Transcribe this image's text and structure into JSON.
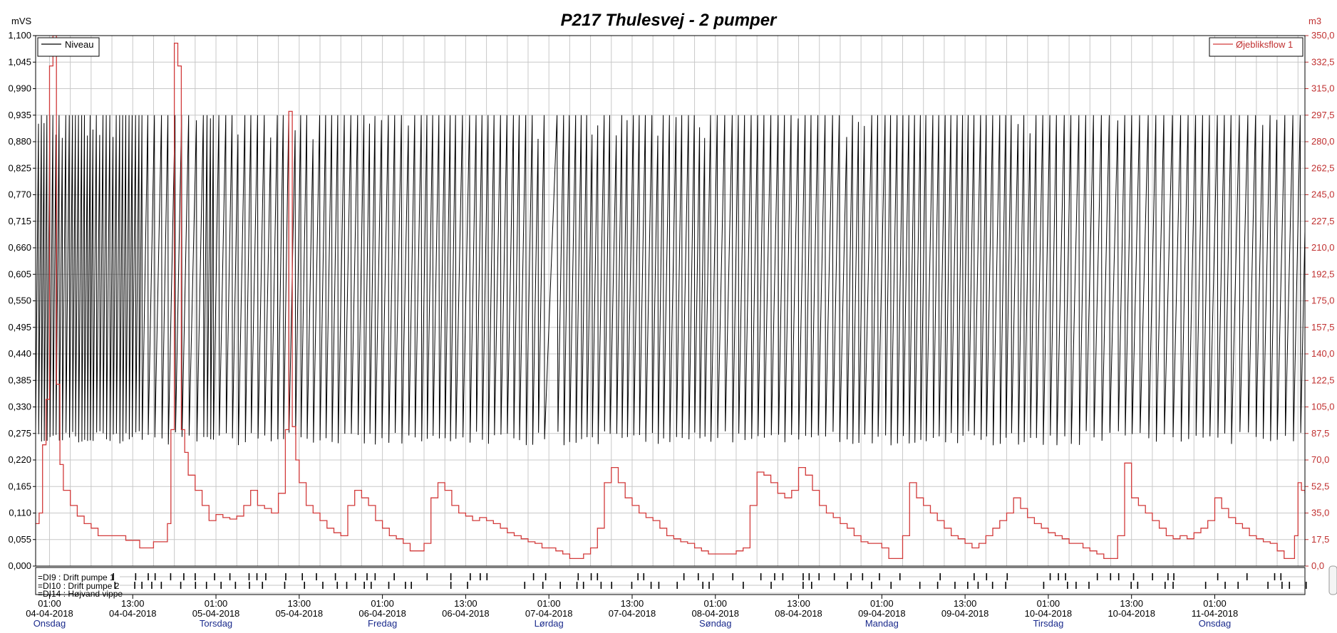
{
  "chart_data": {
    "type": "line",
    "title": "P217 Thulesvej - 2 pumper",
    "left_axis": {
      "unit": "mVS",
      "ylim": [
        0,
        1.1
      ],
      "ticks": [
        "0,000",
        "0,055",
        "0,110",
        "0,165",
        "0,220",
        "0,275",
        "0,330",
        "0,385",
        "0,440",
        "0,495",
        "0,550",
        "0,605",
        "0,660",
        "0,715",
        "0,770",
        "0,825",
        "0,880",
        "0,935",
        "0,990",
        "1,045",
        "1,100"
      ]
    },
    "right_axis": {
      "unit": "m3",
      "ylim": [
        0,
        350
      ],
      "ticks": [
        "0,0",
        "17,5",
        "35,0",
        "52,5",
        "70,0",
        "87,5",
        "105,0",
        "122,5",
        "140,0",
        "157,5",
        "175,0",
        "192,5",
        "210,0",
        "227,5",
        "245,0",
        "262,5",
        "280,0",
        "297,5",
        "315,0",
        "332,5",
        "350,0"
      ]
    },
    "x_axis": {
      "range_hours": [
        -1,
        182
      ],
      "ticks": [
        {
          "h": 1,
          "time": "01:00",
          "date": "04-04-2018",
          "day": "Onsdag"
        },
        {
          "h": 13,
          "time": "13:00",
          "date": "04-04-2018",
          "day": ""
        },
        {
          "h": 25,
          "time": "01:00",
          "date": "05-04-2018",
          "day": "Torsdag"
        },
        {
          "h": 37,
          "time": "13:00",
          "date": "05-04-2018",
          "day": ""
        },
        {
          "h": 49,
          "time": "01:00",
          "date": "06-04-2018",
          "day": "Fredag"
        },
        {
          "h": 61,
          "time": "13:00",
          "date": "06-04-2018",
          "day": ""
        },
        {
          "h": 73,
          "time": "01:00",
          "date": "07-04-2018",
          "day": "Lørdag"
        },
        {
          "h": 85,
          "time": "13:00",
          "date": "07-04-2018",
          "day": ""
        },
        {
          "h": 97,
          "time": "01:00",
          "date": "08-04-2018",
          "day": "Søndag"
        },
        {
          "h": 109,
          "time": "13:00",
          "date": "08-04-2018",
          "day": ""
        },
        {
          "h": 121,
          "time": "01:00",
          "date": "09-04-2018",
          "day": "Mandag"
        },
        {
          "h": 133,
          "time": "13:00",
          "date": "09-04-2018",
          "day": ""
        },
        {
          "h": 145,
          "time": "01:00",
          "date": "10-04-2018",
          "day": "Tirsdag"
        },
        {
          "h": 157,
          "time": "13:00",
          "date": "10-04-2018",
          "day": ""
        },
        {
          "h": 169,
          "time": "01:00",
          "date": "11-04-2018",
          "day": "Onsdag"
        }
      ]
    },
    "series": [
      {
        "name": "Niveau",
        "axis": "left",
        "color": "#000000",
        "pattern": "sawtooth cycles between ~0.28 and ~0.935 mVS",
        "approx_cycle_period_hours": [
          {
            "from": -1,
            "to": 14,
            "period": 0.45
          },
          {
            "from": 14,
            "to": 23,
            "period": 1.0
          },
          {
            "from": 23,
            "to": 24.5,
            "period": 0.45
          },
          {
            "from": 24.5,
            "to": 72,
            "period": 0.9
          },
          {
            "from": 72,
            "to": 74,
            "period": 2.2
          },
          {
            "from": 74,
            "to": 97,
            "period": 0.85
          },
          {
            "from": 97,
            "to": 121,
            "period": 0.95
          },
          {
            "from": 121,
            "to": 145,
            "period": 0.9
          },
          {
            "from": 145,
            "to": 182,
            "period": 1.1
          }
        ]
      },
      {
        "name": "Øjebliksflow 1",
        "axis": "right",
        "color": "#d23a3a",
        "points": [
          [
            -1,
            28
          ],
          [
            -0.5,
            35
          ],
          [
            0,
            80
          ],
          [
            0.5,
            110
          ],
          [
            1,
            330
          ],
          [
            1.5,
            350
          ],
          [
            2,
            120
          ],
          [
            2.5,
            67
          ],
          [
            3,
            50
          ],
          [
            4,
            40
          ],
          [
            5,
            33
          ],
          [
            6,
            28
          ],
          [
            7,
            25
          ],
          [
            8,
            20
          ],
          [
            11,
            20
          ],
          [
            12,
            17
          ],
          [
            13,
            17
          ],
          [
            14,
            12
          ],
          [
            16,
            16
          ],
          [
            17,
            16
          ],
          [
            18,
            28
          ],
          [
            18.5,
            90
          ],
          [
            19,
            345
          ],
          [
            19.5,
            330
          ],
          [
            20,
            90
          ],
          [
            20.5,
            75
          ],
          [
            21,
            60
          ],
          [
            22,
            50
          ],
          [
            23,
            40
          ],
          [
            24,
            30
          ],
          [
            25,
            34
          ],
          [
            26,
            32
          ],
          [
            27,
            31
          ],
          [
            28,
            33
          ],
          [
            29,
            40
          ],
          [
            30,
            50
          ],
          [
            31,
            40
          ],
          [
            32,
            38
          ],
          [
            33,
            35
          ],
          [
            34,
            48
          ],
          [
            35,
            90
          ],
          [
            35.5,
            300
          ],
          [
            36,
            92
          ],
          [
            36.5,
            70
          ],
          [
            37,
            55
          ],
          [
            38,
            40
          ],
          [
            39,
            35
          ],
          [
            40,
            30
          ],
          [
            41,
            25
          ],
          [
            42,
            22
          ],
          [
            43,
            20
          ],
          [
            44,
            40
          ],
          [
            45,
            50
          ],
          [
            46,
            45
          ],
          [
            47,
            40
          ],
          [
            48,
            30
          ],
          [
            49,
            25
          ],
          [
            50,
            20
          ],
          [
            51,
            18
          ],
          [
            52,
            15
          ],
          [
            53,
            10
          ],
          [
            54,
            10
          ],
          [
            55,
            15
          ],
          [
            56,
            45
          ],
          [
            57,
            55
          ],
          [
            58,
            50
          ],
          [
            59,
            40
          ],
          [
            60,
            35
          ],
          [
            61,
            33
          ],
          [
            62,
            30
          ],
          [
            63,
            32
          ],
          [
            64,
            30
          ],
          [
            65,
            28
          ],
          [
            66,
            25
          ],
          [
            67,
            22
          ],
          [
            68,
            20
          ],
          [
            69,
            18
          ],
          [
            70,
            16
          ],
          [
            71,
            15
          ],
          [
            72,
            12
          ],
          [
            73,
            12
          ],
          [
            74,
            10
          ],
          [
            75,
            8
          ],
          [
            76,
            5
          ],
          [
            77,
            5
          ],
          [
            78,
            8
          ],
          [
            79,
            12
          ],
          [
            80,
            25
          ],
          [
            81,
            55
          ],
          [
            82,
            65
          ],
          [
            83,
            55
          ],
          [
            84,
            45
          ],
          [
            85,
            40
          ],
          [
            86,
            35
          ],
          [
            87,
            32
          ],
          [
            88,
            30
          ],
          [
            89,
            25
          ],
          [
            90,
            20
          ],
          [
            91,
            18
          ],
          [
            92,
            16
          ],
          [
            93,
            15
          ],
          [
            94,
            12
          ],
          [
            95,
            10
          ],
          [
            96,
            8
          ],
          [
            97,
            8
          ],
          [
            98,
            8
          ],
          [
            99,
            8
          ],
          [
            100,
            10
          ],
          [
            101,
            12
          ],
          [
            102,
            40
          ],
          [
            103,
            62
          ],
          [
            104,
            60
          ],
          [
            105,
            55
          ],
          [
            106,
            48
          ],
          [
            107,
            45
          ],
          [
            108,
            50
          ],
          [
            109,
            65
          ],
          [
            110,
            60
          ],
          [
            111,
            50
          ],
          [
            112,
            40
          ],
          [
            113,
            35
          ],
          [
            114,
            32
          ],
          [
            115,
            28
          ],
          [
            116,
            25
          ],
          [
            117,
            20
          ],
          [
            118,
            16
          ],
          [
            119,
            15
          ],
          [
            120,
            15
          ],
          [
            121,
            12
          ],
          [
            122,
            5
          ],
          [
            123,
            5
          ],
          [
            124,
            20
          ],
          [
            125,
            55
          ],
          [
            126,
            45
          ],
          [
            127,
            40
          ],
          [
            128,
            35
          ],
          [
            129,
            30
          ],
          [
            130,
            25
          ],
          [
            131,
            20
          ],
          [
            132,
            18
          ],
          [
            133,
            15
          ],
          [
            134,
            12
          ],
          [
            135,
            15
          ],
          [
            136,
            20
          ],
          [
            137,
            25
          ],
          [
            138,
            30
          ],
          [
            139,
            35
          ],
          [
            140,
            45
          ],
          [
            141,
            38
          ],
          [
            142,
            32
          ],
          [
            143,
            28
          ],
          [
            144,
            25
          ],
          [
            145,
            22
          ],
          [
            146,
            20
          ],
          [
            147,
            18
          ],
          [
            148,
            15
          ],
          [
            149,
            15
          ],
          [
            150,
            12
          ],
          [
            151,
            10
          ],
          [
            152,
            8
          ],
          [
            153,
            5
          ],
          [
            154,
            5
          ],
          [
            155,
            20
          ],
          [
            156,
            68
          ],
          [
            157,
            45
          ],
          [
            158,
            40
          ],
          [
            159,
            35
          ],
          [
            160,
            30
          ],
          [
            161,
            25
          ],
          [
            162,
            20
          ],
          [
            163,
            18
          ],
          [
            164,
            20
          ],
          [
            165,
            18
          ],
          [
            166,
            22
          ],
          [
            167,
            25
          ],
          [
            168,
            30
          ],
          [
            169,
            45
          ],
          [
            170,
            38
          ],
          [
            171,
            32
          ],
          [
            172,
            28
          ],
          [
            173,
            25
          ],
          [
            174,
            20
          ],
          [
            175,
            18
          ],
          [
            176,
            16
          ],
          [
            177,
            15
          ],
          [
            178,
            10
          ],
          [
            179,
            5
          ],
          [
            180,
            5
          ],
          [
            180.5,
            20
          ],
          [
            181,
            55
          ],
          [
            181.5,
            50
          ],
          [
            182,
            48
          ]
        ]
      }
    ],
    "digital_inputs": [
      {
        "label": "=DI9 : Drift pumpe 1"
      },
      {
        "label": "=DI10 : Drift pumpe 2"
      },
      {
        "label": "=DI14 : Højvand vippe"
      }
    ],
    "legend": {
      "left": "top-left",
      "right": "top-right"
    },
    "grid": true
  }
}
